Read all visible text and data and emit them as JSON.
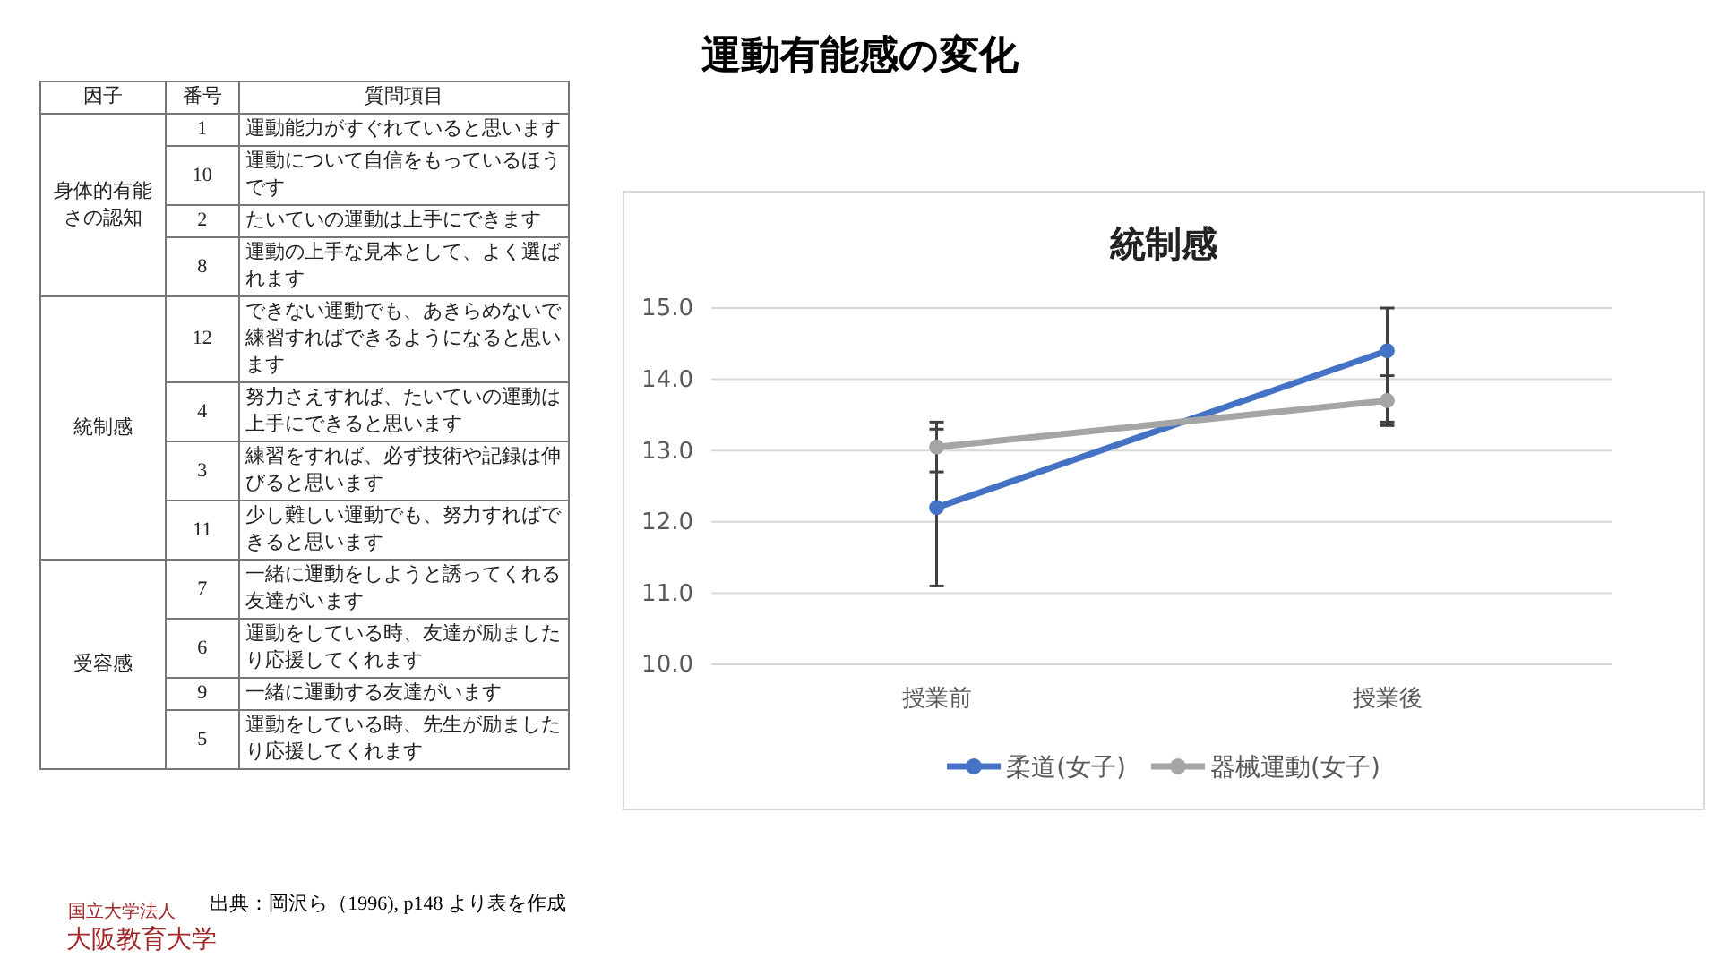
{
  "chart_data": [
    {
      "type": "other",
      "title": "運動有能感の変化",
      "annotations": [
        "因子",
        "番号",
        "質問項目",
        "身体的有能さの認知",
        "1",
        "運動能力がすぐれていると思います",
        "10",
        "運動について自信をもっているほうです",
        "2",
        "たいていの運動は上手にできます",
        "8",
        "運動の上手な見本として、よく選ばれます",
        "統制感",
        "12",
        "できない運動でも、あきらめないで練習すればできるようになると思います",
        "4",
        "努力さえすれば、たいていの運動は上手にできると思います",
        "3",
        "練習をすれば、必ず技術や記録は伸びると思います",
        "11",
        "少し難しい運動でも、努力すればできると思います",
        "受容感",
        "7",
        "一緒に運動をしようと誘ってくれる友達がいます",
        "6",
        "運動をしている時、友達が励ましたり応援してくれます",
        "9",
        "一緒に運動する友達がいます",
        "5",
        "運動をしている時、先生が励ましたり応援してくれます",
        "出典：岡沢ら（1996), p148 より表を作成",
        "国立大学法人",
        "大阪教育大学"
      ]
    },
    {
      "type": "line",
      "title": "統制感",
      "categories": [
        "授業前",
        "授業後"
      ],
      "series": [
        {
          "name": "柔道(女子)",
          "color": "#4472c4",
          "values": [
            12.2,
            14.4
          ],
          "errors": [
            1.1,
            [
              13.4,
              15.0
            ]
          ]
        },
        {
          "name": "器械運動(女子)",
          "color": "#a5a5a5",
          "values": [
            13.05,
            13.7
          ],
          "errors": [
            0.35,
            0.35
          ]
        }
      ],
      "ylim": [
        10,
        15
      ],
      "yticks": [
        {
          "value": 10,
          "label": "10.0"
        },
        {
          "value": 11,
          "label": "11.0"
        },
        {
          "value": 12,
          "label": "12.0"
        },
        {
          "value": 13,
          "label": "13.0"
        },
        {
          "value": 14,
          "label": "14.0"
        },
        {
          "value": 15,
          "label": "15.0"
        }
      ],
      "grid": "y",
      "legend": "bottom",
      "marker": "circle"
    }
  ]
}
